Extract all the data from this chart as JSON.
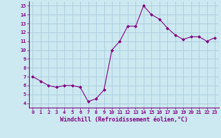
{
  "x": [
    0,
    1,
    2,
    3,
    4,
    5,
    6,
    7,
    8,
    9,
    10,
    11,
    12,
    13,
    14,
    15,
    16,
    17,
    18,
    19,
    20,
    21,
    22,
    23
  ],
  "y": [
    7.0,
    6.5,
    6.0,
    5.8,
    6.0,
    6.0,
    5.8,
    4.2,
    4.5,
    5.5,
    10.0,
    11.0,
    12.7,
    12.7,
    15.0,
    14.0,
    13.5,
    12.5,
    11.7,
    11.2,
    11.5,
    11.5,
    11.0,
    11.4
  ],
  "line_color": "#800080",
  "marker": "D",
  "marker_size": 2,
  "background_color": "#cce8f0",
  "grid_color": "#aaccdd",
  "xlabel": "Windchill (Refroidissement éolien,°C)",
  "xlabel_color": "#800080",
  "tick_color": "#800080",
  "xlim": [
    -0.5,
    23.5
  ],
  "ylim": [
    3.5,
    15.5
  ],
  "yticks": [
    4,
    5,
    6,
    7,
    8,
    9,
    10,
    11,
    12,
    13,
    14,
    15
  ],
  "xticks": [
    0,
    1,
    2,
    3,
    4,
    5,
    6,
    7,
    8,
    9,
    10,
    11,
    12,
    13,
    14,
    15,
    16,
    17,
    18,
    19,
    20,
    21,
    22,
    23
  ],
  "xtick_labels": [
    "0",
    "1",
    "2",
    "3",
    "4",
    "5",
    "6",
    "7",
    "8",
    "9",
    "10",
    "11",
    "12",
    "13",
    "14",
    "15",
    "16",
    "17",
    "18",
    "19",
    "20",
    "21",
    "22",
    "23"
  ]
}
